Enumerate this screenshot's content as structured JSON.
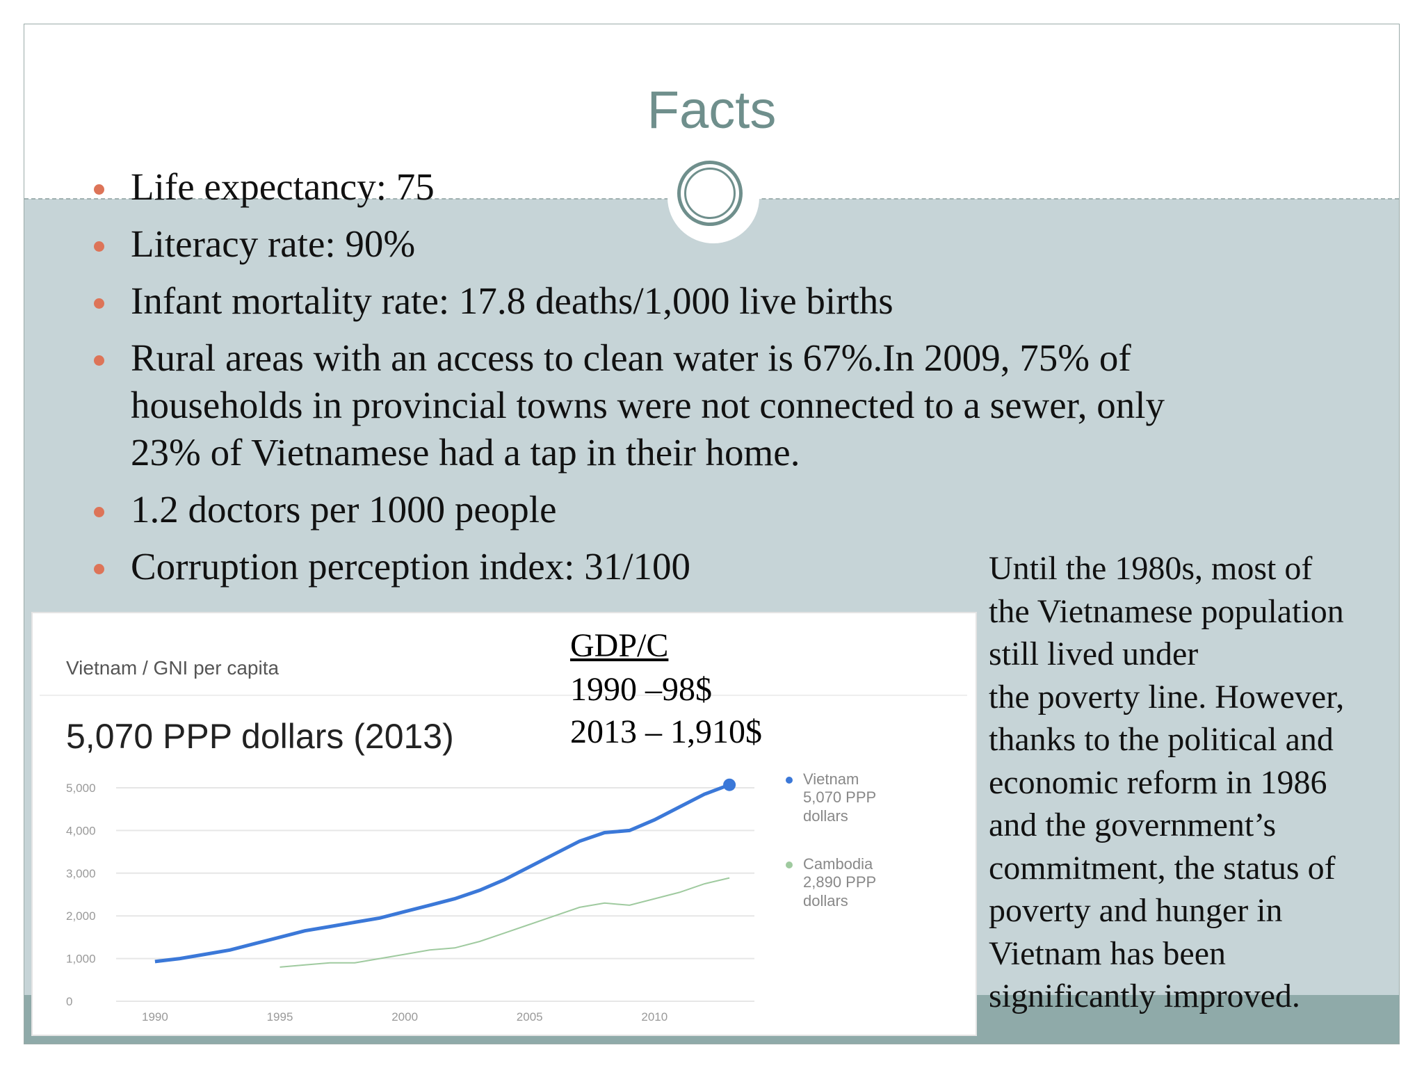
{
  "slide": {
    "title": "Facts",
    "bullets": [
      [
        "Life expectancy: 75"
      ],
      [
        "Literacy rate: 90%"
      ],
      [
        "Infant mortality rate: 17.8 deaths/1,000 live births"
      ],
      [
        "Rural areas with an access to clean water is 67%.In 2009, 75% of",
        "households in provincial towns were not connected to a sewer, only",
        "23% of Vietnamese had a tap in their home."
      ],
      [
        "1.2 doctors per 1000 people"
      ],
      [
        "Corruption perception index: 31/100"
      ]
    ],
    "gdp": {
      "heading": "GDP/C",
      "lines": [
        "1990 –98$",
        "2013 – 1,910$"
      ]
    },
    "paragraph": [
      "Until the 1980s, most of",
      "the Vietnamese population",
      "still lived under",
      "the poverty line. However,",
      "thanks to the political and",
      "economic reform in 1986",
      "and the government’s",
      "commitment, the status of",
      "poverty and hunger in",
      "Vietnam has been",
      "significantly improved."
    ]
  },
  "chart": {
    "type": "line",
    "title": "Vietnam / GNI per capita",
    "subtitle": "5,070 PPP dollars (2013)",
    "x": [
      1990,
      1991,
      1992,
      1993,
      1994,
      1995,
      1996,
      1997,
      1998,
      1999,
      2000,
      2001,
      2002,
      2003,
      2004,
      2005,
      2006,
      2007,
      2008,
      2009,
      2010,
      2011,
      2012,
      2013
    ],
    "series": [
      {
        "name": "Vietnam",
        "label": "5,070 PPP dollars",
        "color": "#3b78d8",
        "values": [
          930,
          1000,
          1100,
          1200,
          1350,
          1500,
          1650,
          1750,
          1850,
          1950,
          2100,
          2250,
          2400,
          2600,
          2850,
          3150,
          3450,
          3750,
          3950,
          4000,
          4250,
          4550,
          4850,
          5070
        ]
      },
      {
        "name": "Cambodia",
        "label": "2,890 PPP dollars",
        "color": "#9fca9f",
        "values": [
          null,
          null,
          null,
          null,
          null,
          800,
          850,
          900,
          900,
          1000,
          1100,
          1200,
          1250,
          1400,
          1600,
          1800,
          2000,
          2200,
          2300,
          2250,
          2400,
          2550,
          2750,
          2890
        ]
      }
    ],
    "xlim": [
      1989,
      2014
    ],
    "xticks": [
      1990,
      1995,
      2000,
      2005,
      2010
    ],
    "ylim": [
      0,
      5000
    ],
    "yticks": [
      0,
      {
        "value": 1000,
        "label": "1,000"
      },
      {
        "value": 2000,
        "label": "2,000"
      },
      {
        "value": 3000,
        "label": "3,000"
      },
      {
        "value": 4000,
        "label": "4,000"
      },
      {
        "value": 5000,
        "label": "5,000"
      }
    ],
    "grid": true
  }
}
